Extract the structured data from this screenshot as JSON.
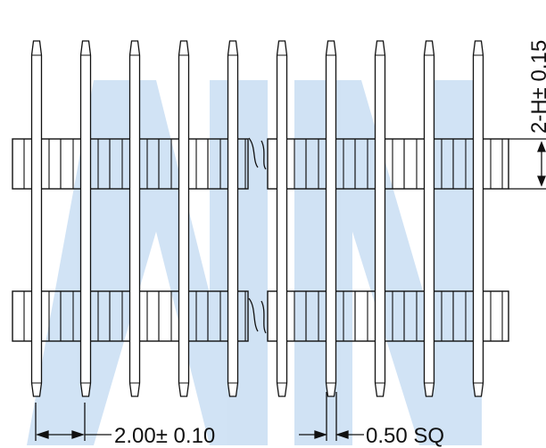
{
  "drawing": {
    "pitch_label": "2.00± 0.10",
    "pin_size_label": "0.50  SQ",
    "height_label": "2-H± 0.15"
  },
  "colors": {
    "line": "#111111",
    "watermark": "#2f7fd0"
  }
}
